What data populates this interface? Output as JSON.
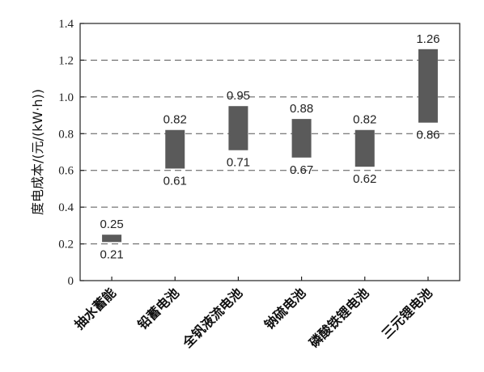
{
  "chart_data": {
    "type": "bar",
    "subtype": "floating-range",
    "title": "",
    "xlabel": "",
    "ylabel": "度电成本/(元/(kW·h))",
    "ylim": [
      0,
      1.4
    ],
    "yticks": [
      "0",
      "0.2",
      "0.4",
      "0.6",
      "0.8",
      "1.0",
      "1.2",
      "1.4"
    ],
    "grid": "horizontal dashed",
    "legend": "none",
    "bar_color": "#5a5a5a",
    "categories": [
      "抽水蓄能",
      "铅蓄电池",
      "全钒液流电池",
      "钠硫电池",
      "磷酸铁锂电池",
      "三元锂电池"
    ],
    "low": [
      0.21,
      0.61,
      0.71,
      0.67,
      0.62,
      0.86
    ],
    "high": [
      0.25,
      0.82,
      0.95,
      0.88,
      0.82,
      1.26
    ],
    "low_labels": [
      "0.21",
      "0.61",
      "0.71",
      "0.67",
      "0.62",
      "0.86"
    ],
    "high_labels": [
      "0.25",
      "0.82",
      "0.95",
      "0.88",
      "0.82",
      "1.26"
    ]
  }
}
